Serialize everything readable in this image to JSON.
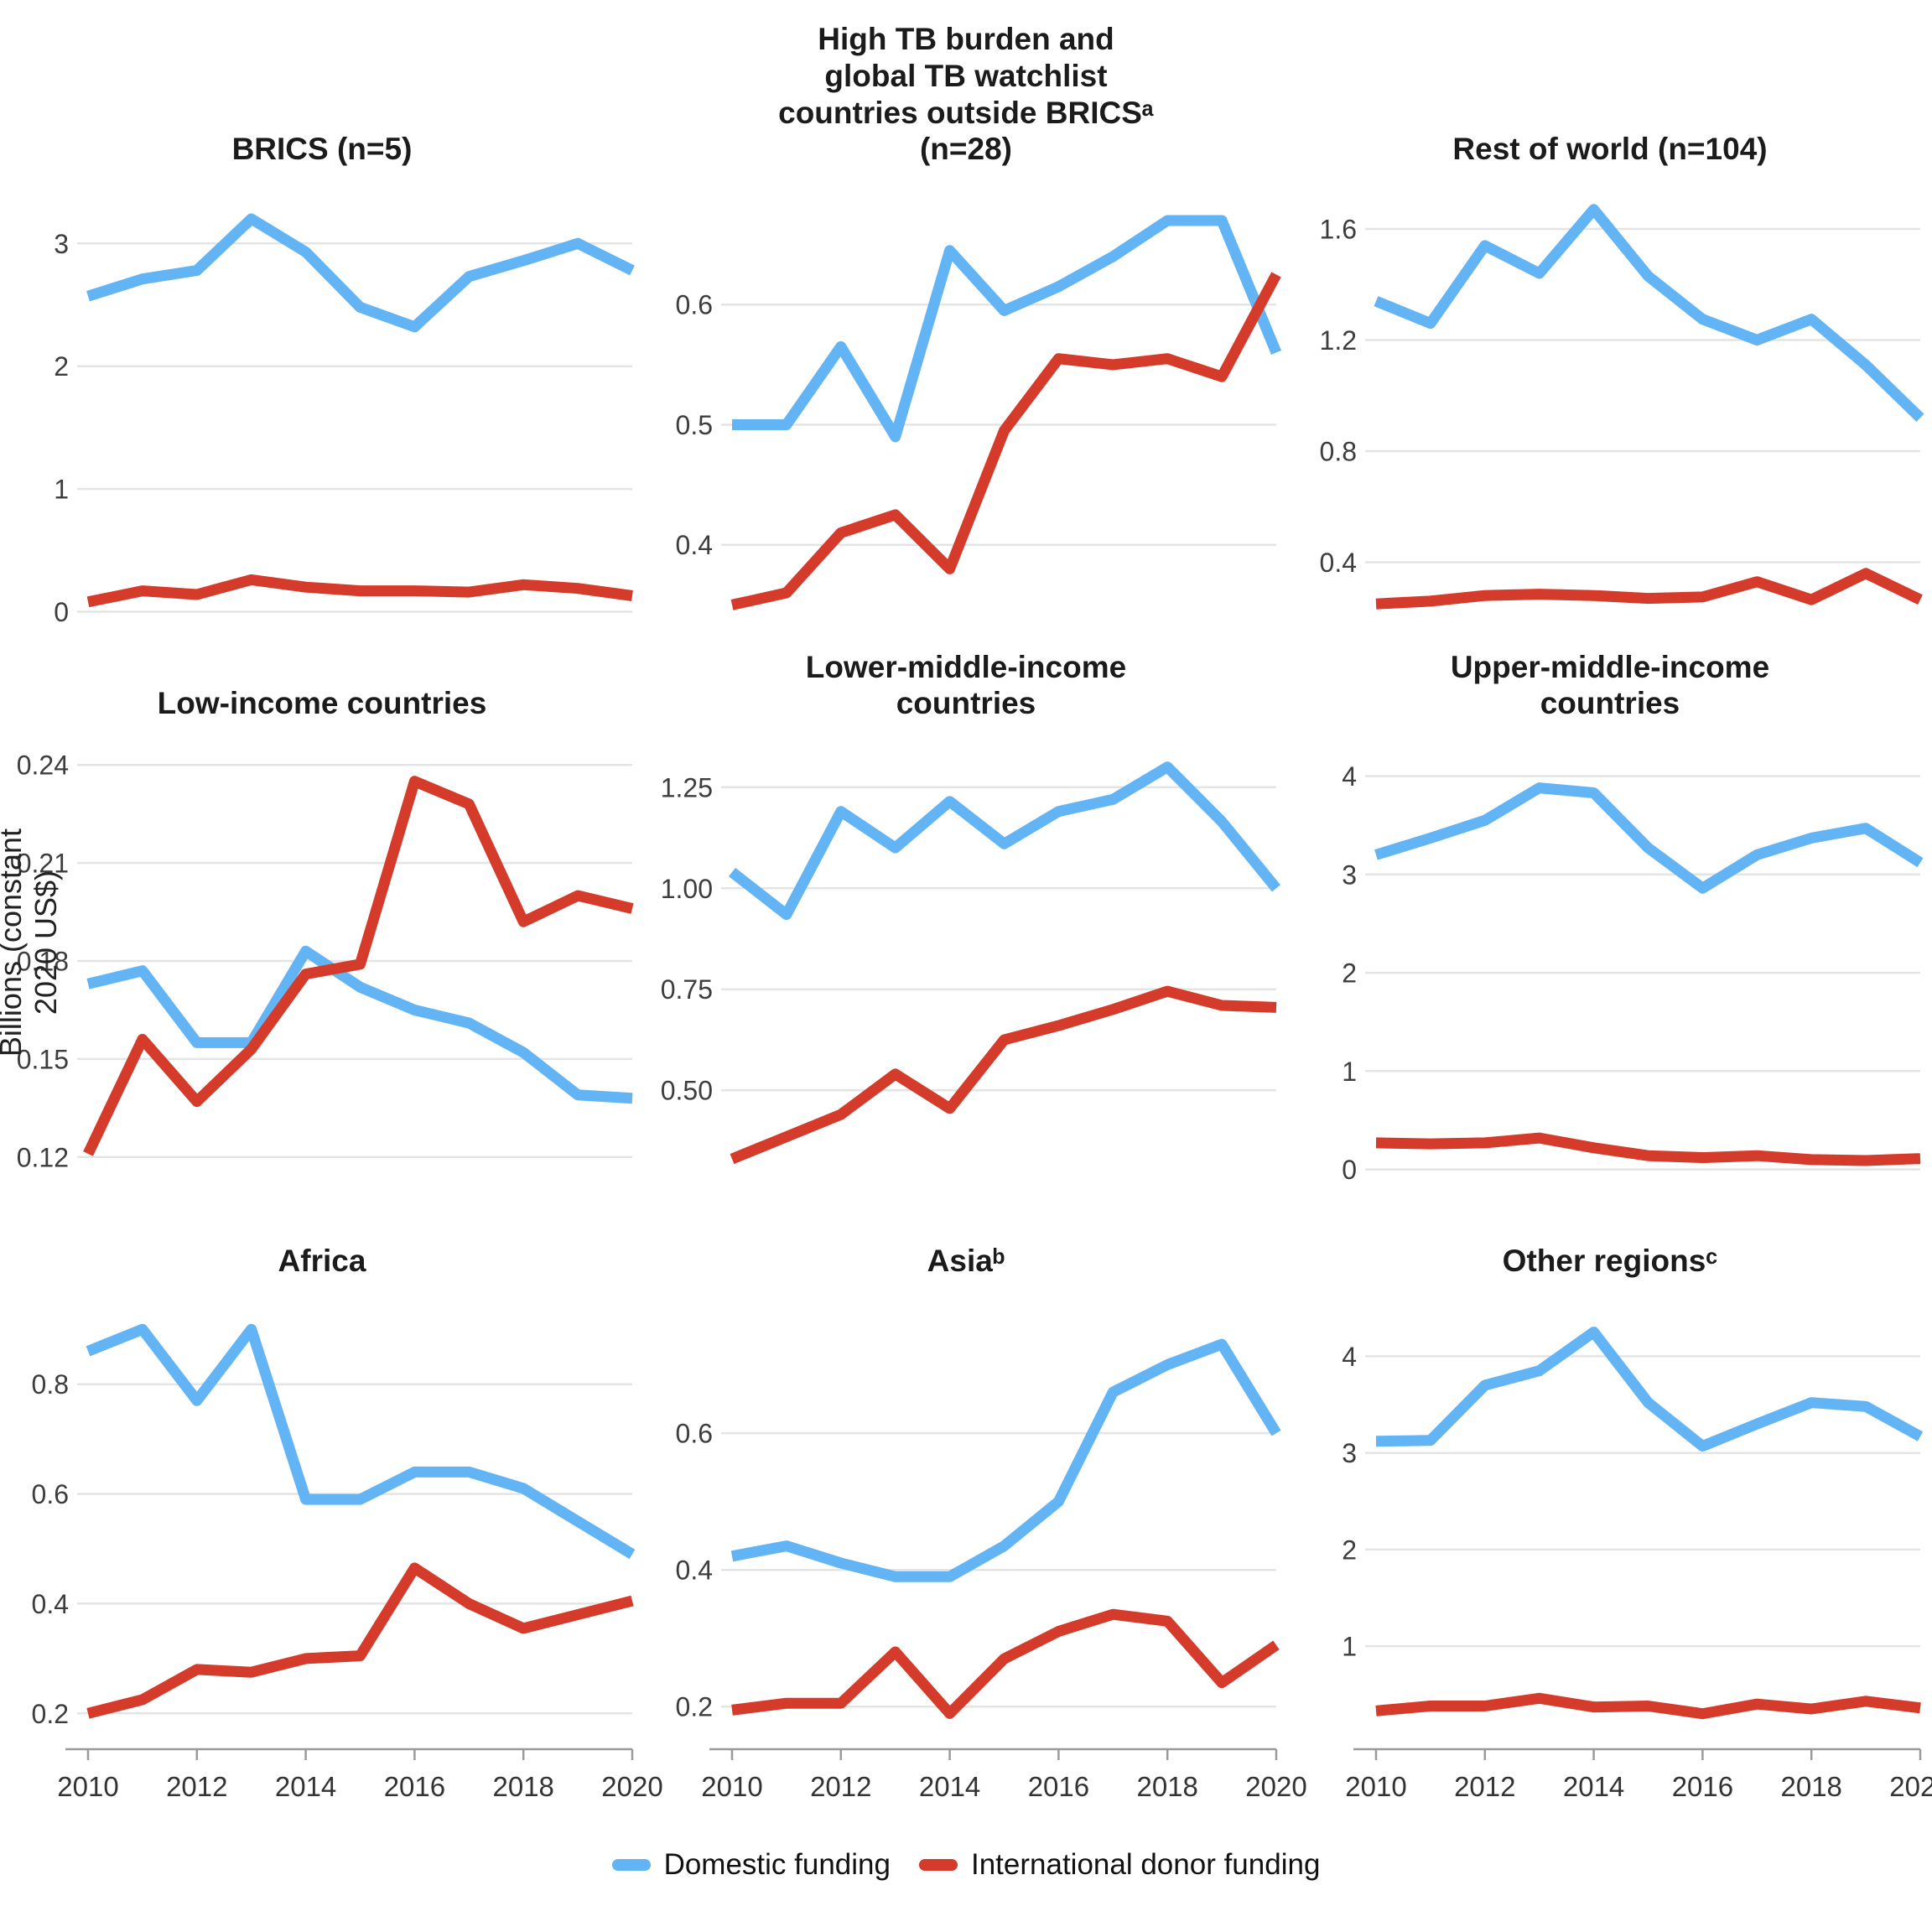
{
  "ylabel": "Billions (constant 2020 US$)",
  "colors": {
    "domestic": "#62B4F4",
    "donor": "#D53B2B",
    "gridline": "#E4E4E4",
    "axis": "#9a9a9a",
    "tick_text": "#3d3d3d",
    "x_text": "#333333"
  },
  "legend": {
    "items": [
      {
        "label": "Domestic funding",
        "color": "#62B4F4"
      },
      {
        "label": "International donor funding",
        "color": "#D53B2B"
      }
    ]
  },
  "chart_data": [
    {
      "type": "line",
      "title": "BRICS (n=5)",
      "x": [
        2010,
        2011,
        2012,
        2013,
        2014,
        2015,
        2016,
        2017,
        2018,
        2019,
        2020
      ],
      "ylim": [
        -0.14,
        3.48
      ],
      "yticks": [
        0,
        1,
        2,
        3
      ],
      "ytick_labels": [
        "0",
        "1",
        "2",
        "3"
      ],
      "series": [
        {
          "name": "Domestic funding",
          "color": "#62B4F4",
          "values": [
            2.57,
            2.71,
            2.78,
            3.2,
            2.93,
            2.48,
            2.32,
            2.73,
            2.86,
            3.0,
            2.78
          ]
        },
        {
          "name": "International donor funding",
          "color": "#D53B2B",
          "values": [
            0.08,
            0.17,
            0.14,
            0.26,
            0.2,
            0.17,
            0.17,
            0.16,
            0.22,
            0.19,
            0.13
          ]
        }
      ]
    },
    {
      "type": "line",
      "title": "High TB burden and\nglobal TB watchlist\ncountries outside BRICSᵃ\n(n=28)",
      "x": [
        2010,
        2011,
        2012,
        2013,
        2014,
        2015,
        2016,
        2017,
        2018,
        2019,
        2020
      ],
      "ylim": [
        0.33,
        0.7
      ],
      "yticks": [
        0.4,
        0.5,
        0.6
      ],
      "ytick_labels": [
        "0.4",
        "0.5",
        "0.6"
      ],
      "series": [
        {
          "name": "Domestic funding",
          "color": "#62B4F4",
          "values": [
            0.5,
            0.5,
            0.565,
            0.49,
            0.645,
            0.595,
            0.615,
            0.64,
            0.67,
            0.67,
            0.56
          ]
        },
        {
          "name": "International donor funding",
          "color": "#D53B2B",
          "values": [
            0.35,
            0.36,
            0.41,
            0.425,
            0.38,
            0.495,
            0.555,
            0.55,
            0.555,
            0.54,
            0.625
          ]
        }
      ]
    },
    {
      "type": "line",
      "title": "Rest of world (n=104)",
      "x": [
        2010,
        2011,
        2012,
        2013,
        2014,
        2015,
        2016,
        2017,
        2018,
        2019,
        2020
      ],
      "ylim": [
        0.16,
        1.76
      ],
      "yticks": [
        0.4,
        0.8,
        1.2,
        1.6
      ],
      "ytick_labels": [
        "0.4",
        "0.8",
        "1.2",
        "1.6"
      ],
      "series": [
        {
          "name": "Domestic funding",
          "color": "#62B4F4",
          "values": [
            1.34,
            1.26,
            1.54,
            1.44,
            1.67,
            1.43,
            1.275,
            1.2,
            1.275,
            1.11,
            0.92
          ]
        },
        {
          "name": "International donor funding",
          "color": "#D53B2B",
          "values": [
            0.25,
            0.26,
            0.28,
            0.285,
            0.28,
            0.27,
            0.275,
            0.33,
            0.265,
            0.36,
            0.265
          ]
        }
      ]
    },
    {
      "type": "line",
      "title": "Low-income countries",
      "x": [
        2010,
        2011,
        2012,
        2013,
        2014,
        2015,
        2016,
        2017,
        2018,
        2019,
        2020
      ],
      "ylim": [
        0.112,
        0.248
      ],
      "yticks": [
        0.12,
        0.15,
        0.18,
        0.21,
        0.24
      ],
      "ytick_labels": [
        "0.12",
        "0.15",
        "0.18",
        "0.21",
        "0.24"
      ],
      "series": [
        {
          "name": "Domestic funding",
          "color": "#62B4F4",
          "values": [
            0.173,
            0.177,
            0.155,
            0.155,
            0.183,
            0.172,
            0.165,
            0.161,
            0.152,
            0.139,
            0.138
          ]
        },
        {
          "name": "International donor funding",
          "color": "#D53B2B",
          "values": [
            0.121,
            0.156,
            0.137,
            0.153,
            0.176,
            0.179,
            0.235,
            0.228,
            0.192,
            0.2,
            0.196
          ]
        }
      ]
    },
    {
      "type": "line",
      "title": "Lower-middle-income\ncountries",
      "x": [
        2010,
        2011,
        2012,
        2013,
        2014,
        2015,
        2016,
        2017,
        2018,
        2019,
        2020
      ],
      "ylim": [
        0.27,
        1.37
      ],
      "yticks": [
        0.5,
        0.75,
        1.0,
        1.25
      ],
      "ytick_labels": [
        "0.50",
        "0.75",
        "1.00",
        "1.25"
      ],
      "series": [
        {
          "name": "Domestic funding",
          "color": "#62B4F4",
          "values": [
            1.04,
            0.935,
            1.19,
            1.1,
            1.215,
            1.11,
            1.19,
            1.22,
            1.3,
            1.165,
            1.0
          ]
        },
        {
          "name": "International donor funding",
          "color": "#D53B2B",
          "values": [
            0.33,
            0.385,
            0.44,
            0.54,
            0.455,
            0.625,
            0.66,
            0.7,
            0.745,
            0.71,
            0.705
          ]
        }
      ]
    },
    {
      "type": "line",
      "title": "Upper-middle-income\ncountries",
      "x": [
        2010,
        2011,
        2012,
        2013,
        2014,
        2015,
        2016,
        2017,
        2018,
        2019,
        2020
      ],
      "ylim": [
        -0.14,
        4.38
      ],
      "yticks": [
        0,
        1,
        2,
        3,
        4
      ],
      "ytick_labels": [
        "0",
        "1",
        "2",
        "3",
        "4"
      ],
      "series": [
        {
          "name": "Domestic funding",
          "color": "#62B4F4",
          "values": [
            3.2,
            3.37,
            3.55,
            3.88,
            3.83,
            3.27,
            2.86,
            3.2,
            3.37,
            3.47,
            3.12
          ]
        },
        {
          "name": "International donor funding",
          "color": "#D53B2B",
          "values": [
            0.27,
            0.26,
            0.27,
            0.32,
            0.22,
            0.14,
            0.12,
            0.14,
            0.1,
            0.09,
            0.11
          ]
        }
      ]
    },
    {
      "type": "line",
      "title": "Africa",
      "x": [
        2010,
        2011,
        2012,
        2013,
        2014,
        2015,
        2016,
        2017,
        2018,
        2019,
        2020
      ],
      "ylim": [
        0.15,
        0.96
      ],
      "yticks": [
        0.2,
        0.4,
        0.6,
        0.8
      ],
      "ytick_labels": [
        "0.2",
        "0.4",
        "0.6",
        "0.8"
      ],
      "xticks": [
        2010,
        2012,
        2014,
        2016,
        2018,
        2020
      ],
      "xtick_labels": [
        "2010",
        "2012",
        "2014",
        "2016",
        "2018",
        "2020"
      ],
      "series": [
        {
          "name": "Domestic funding",
          "color": "#62B4F4",
          "values": [
            0.86,
            0.9,
            0.77,
            0.9,
            0.59,
            0.59,
            0.64,
            0.64,
            0.61,
            0.55,
            0.49
          ]
        },
        {
          "name": "International donor funding",
          "color": "#D53B2B",
          "values": [
            0.2,
            0.225,
            0.28,
            0.275,
            0.3,
            0.305,
            0.465,
            0.4,
            0.355,
            0.38,
            0.405
          ]
        }
      ]
    },
    {
      "type": "line",
      "title": "Asiaᵇ",
      "x": [
        2010,
        2011,
        2012,
        2013,
        2014,
        2015,
        2016,
        2017,
        2018,
        2019,
        2020
      ],
      "ylim": [
        0.15,
        0.8
      ],
      "yticks": [
        0.2,
        0.4,
        0.6
      ],
      "ytick_labels": [
        "0.2",
        "0.4",
        "0.6"
      ],
      "xticks": [
        2010,
        2012,
        2014,
        2016,
        2018,
        2020
      ],
      "xtick_labels": [
        "2010",
        "2012",
        "2014",
        "2016",
        "2018",
        "2020"
      ],
      "series": [
        {
          "name": "Domestic funding",
          "color": "#62B4F4",
          "values": [
            0.42,
            0.435,
            0.41,
            0.39,
            0.39,
            0.435,
            0.5,
            0.66,
            0.7,
            0.73,
            0.6
          ]
        },
        {
          "name": "International donor funding",
          "color": "#D53B2B",
          "values": [
            0.195,
            0.205,
            0.205,
            0.28,
            0.19,
            0.27,
            0.31,
            0.335,
            0.325,
            0.235,
            0.29
          ]
        }
      ]
    },
    {
      "type": "line",
      "title": "Other regionsᶜ",
      "x": [
        2010,
        2011,
        2012,
        2013,
        2014,
        2015,
        2016,
        2017,
        2018,
        2019,
        2020
      ],
      "ylim": [
        0.02,
        4.62
      ],
      "yticks": [
        1,
        2,
        3,
        4
      ],
      "ytick_labels": [
        "1",
        "2",
        "3",
        "4"
      ],
      "xticks": [
        2010,
        2012,
        2014,
        2016,
        2018,
        2020
      ],
      "xtick_labels": [
        "2010",
        "2012",
        "2014",
        "2016",
        "2018",
        "2020"
      ],
      "series": [
        {
          "name": "Domestic funding",
          "color": "#62B4F4",
          "values": [
            3.12,
            3.13,
            3.7,
            3.85,
            4.25,
            3.52,
            3.07,
            3.3,
            3.52,
            3.48,
            3.17
          ]
        },
        {
          "name": "International donor funding",
          "color": "#D53B2B",
          "values": [
            0.33,
            0.38,
            0.38,
            0.46,
            0.37,
            0.38,
            0.3,
            0.4,
            0.35,
            0.43,
            0.36
          ]
        }
      ]
    }
  ]
}
